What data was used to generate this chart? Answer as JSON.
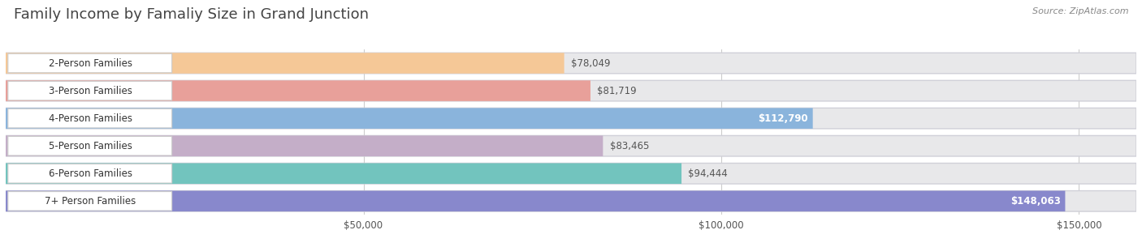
{
  "title": "Family Income by Famaliy Size in Grand Junction",
  "source": "Source: ZipAtlas.com",
  "categories": [
    "2-Person Families",
    "3-Person Families",
    "4-Person Families",
    "5-Person Families",
    "6-Person Families",
    "7+ Person Families"
  ],
  "values": [
    78049,
    81719,
    112790,
    83465,
    94444,
    148063
  ],
  "bar_colors": [
    "#f5c897",
    "#e8a09a",
    "#8ab4dc",
    "#c4aec8",
    "#72c4be",
    "#8888cc"
  ],
  "label_colors": [
    "#555555",
    "#555555",
    "#ffffff",
    "#555555",
    "#555555",
    "#ffffff"
  ],
  "xmax": 158000,
  "xticks": [
    50000,
    100000,
    150000
  ],
  "xticklabels": [
    "$50,000",
    "$100,000",
    "$150,000"
  ],
  "bg_color": "#f5f5f5",
  "bar_bg_color": "#e8e8ea",
  "pill_outline_color": "#d0d0d8",
  "title_fontsize": 13,
  "label_fontsize": 8.5,
  "value_fontsize": 8.5,
  "source_fontsize": 8
}
